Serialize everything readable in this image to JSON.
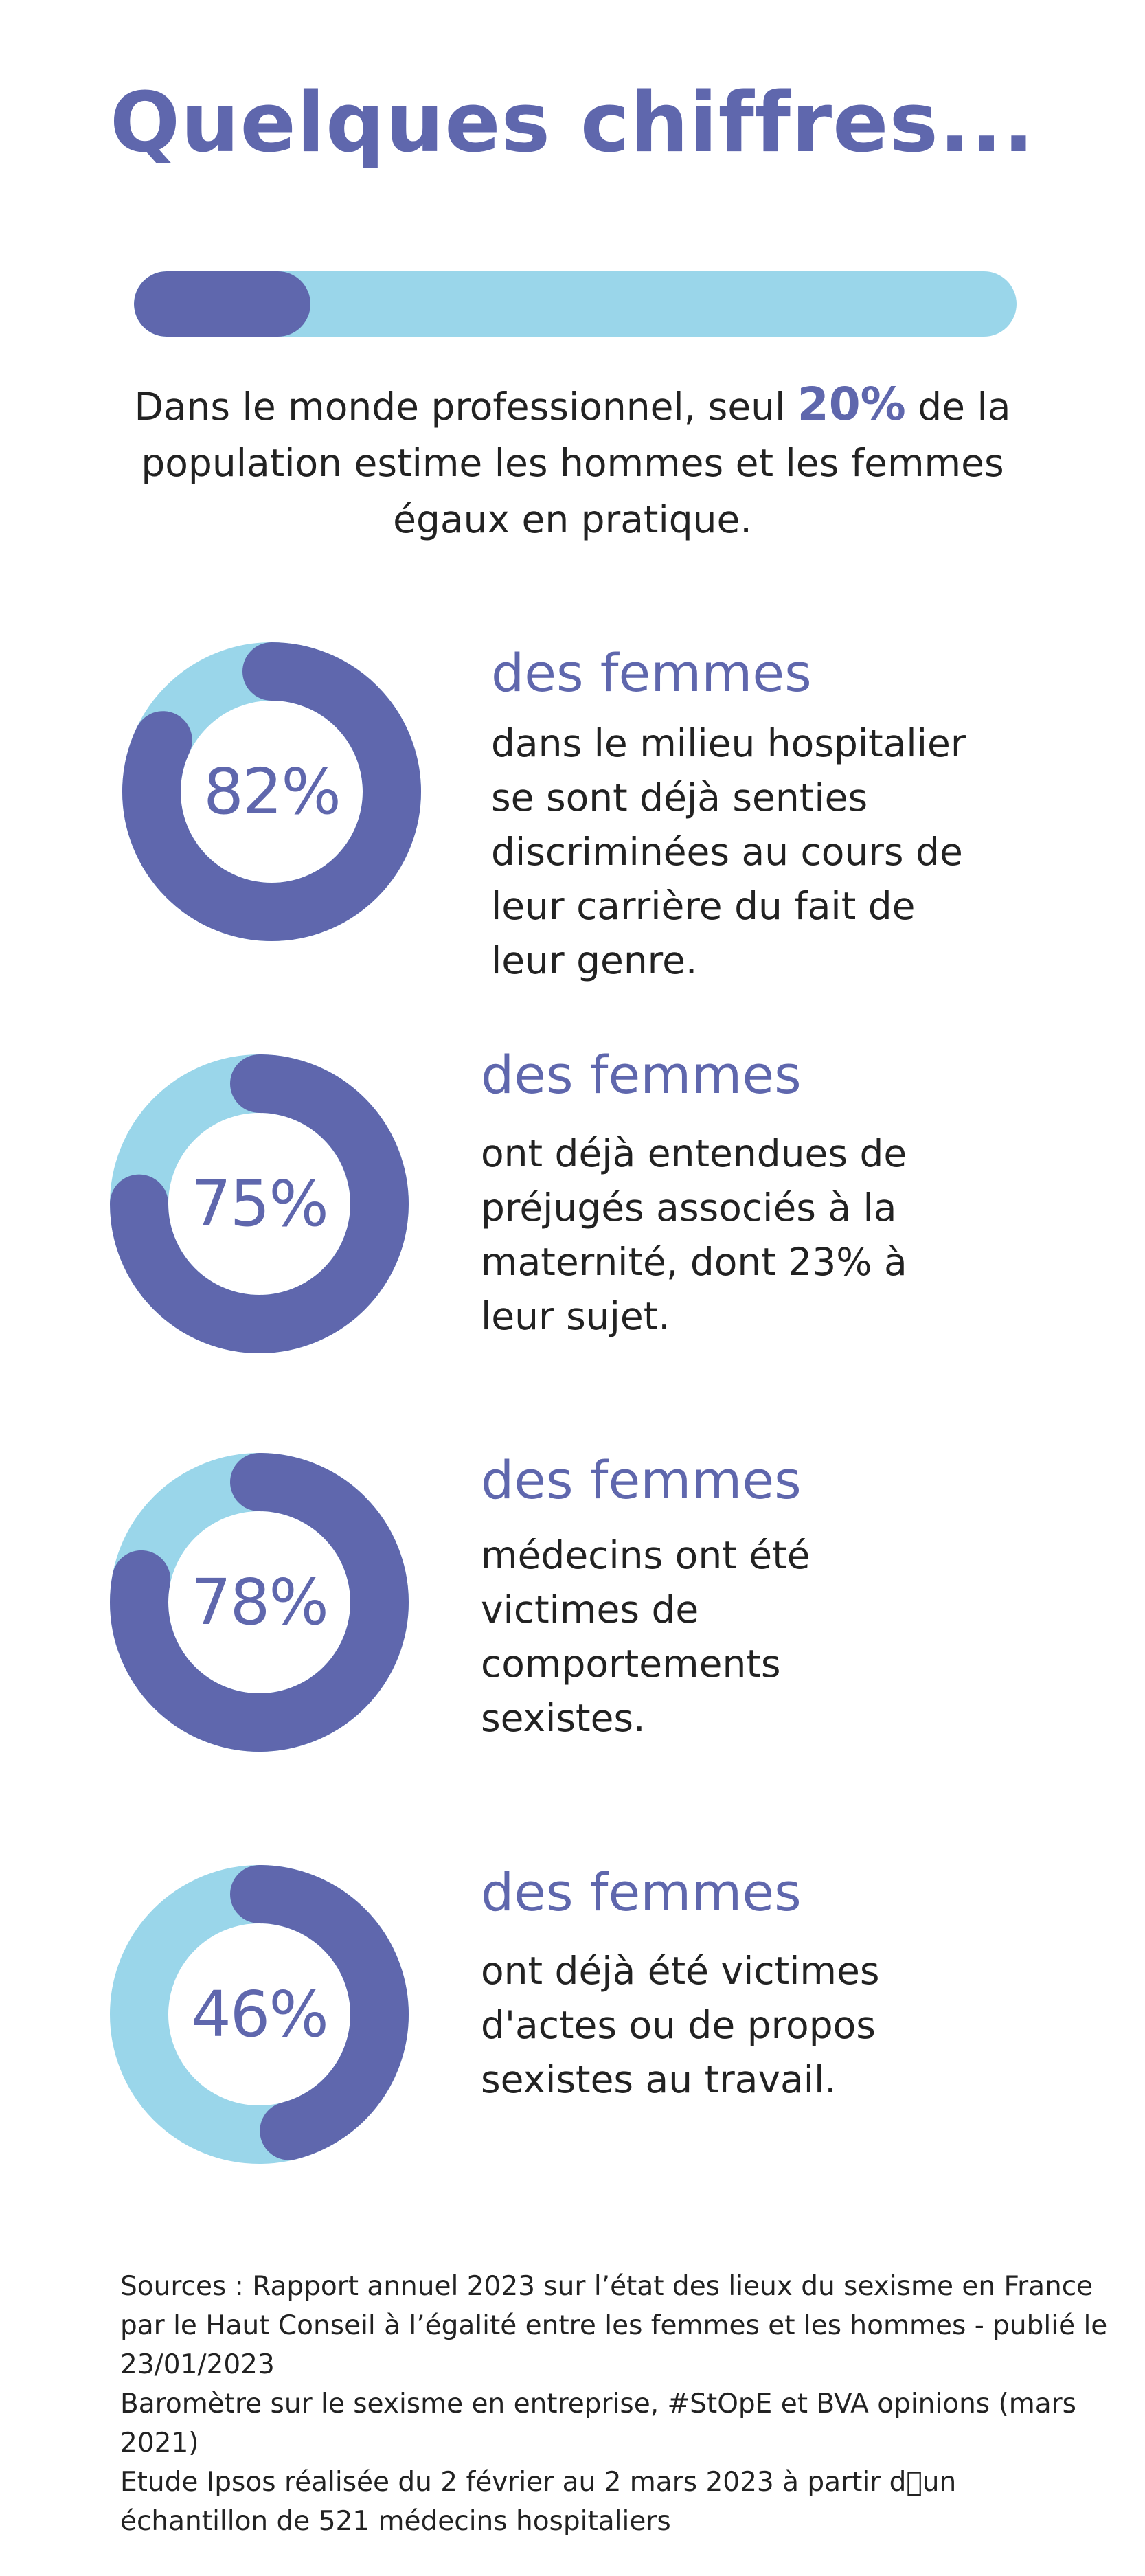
{
  "title": "Quelques chiffres...",
  "colors": {
    "accent": "#5f67ad",
    "light": "#9ad6ea"
  },
  "progress": {
    "percent": 20
  },
  "intro": {
    "before": "Dans le monde professionnel, seul ",
    "highlight": "20%",
    "after": " de la population estime les hommes et les femmes égaux en pratique."
  },
  "chart_data": [
    {
      "type": "pie",
      "value": 82,
      "label": "82%",
      "heading": "des femmes",
      "description": "dans le milieu hospitalier se sont déjà senties discriminées au cours de leur carrière du fait de leur genre."
    },
    {
      "type": "pie",
      "value": 75,
      "label": "75%",
      "heading": "des femmes",
      "description": "ont déjà entendues de préjugés associés à la maternité, dont 23% à leur sujet."
    },
    {
      "type": "pie",
      "value": 78,
      "label": "78%",
      "heading": "des femmes",
      "description": "médecins ont été victimes de comportements sexistes."
    },
    {
      "type": "pie",
      "value": 46,
      "label": "46%",
      "heading": "des femmes",
      "description": "ont déjà été victimes d'actes ou de propos sexistes au travail."
    }
  ],
  "sources": [
    "Sources : Rapport annuel 2023 sur l’état des lieux du sexisme en France par le Haut Conseil à l’égalité entre les femmes et les hommes - publié le 23/01/2023",
    "Baromètre sur le sexisme en entreprise, #StOpE et BVA opinions (mars 2021)",
    "Etude Ipsos réalisée du 2 février au 2 mars 2023 à partir d\u0000un échantillon de 521 médecins hospitaliers"
  ]
}
